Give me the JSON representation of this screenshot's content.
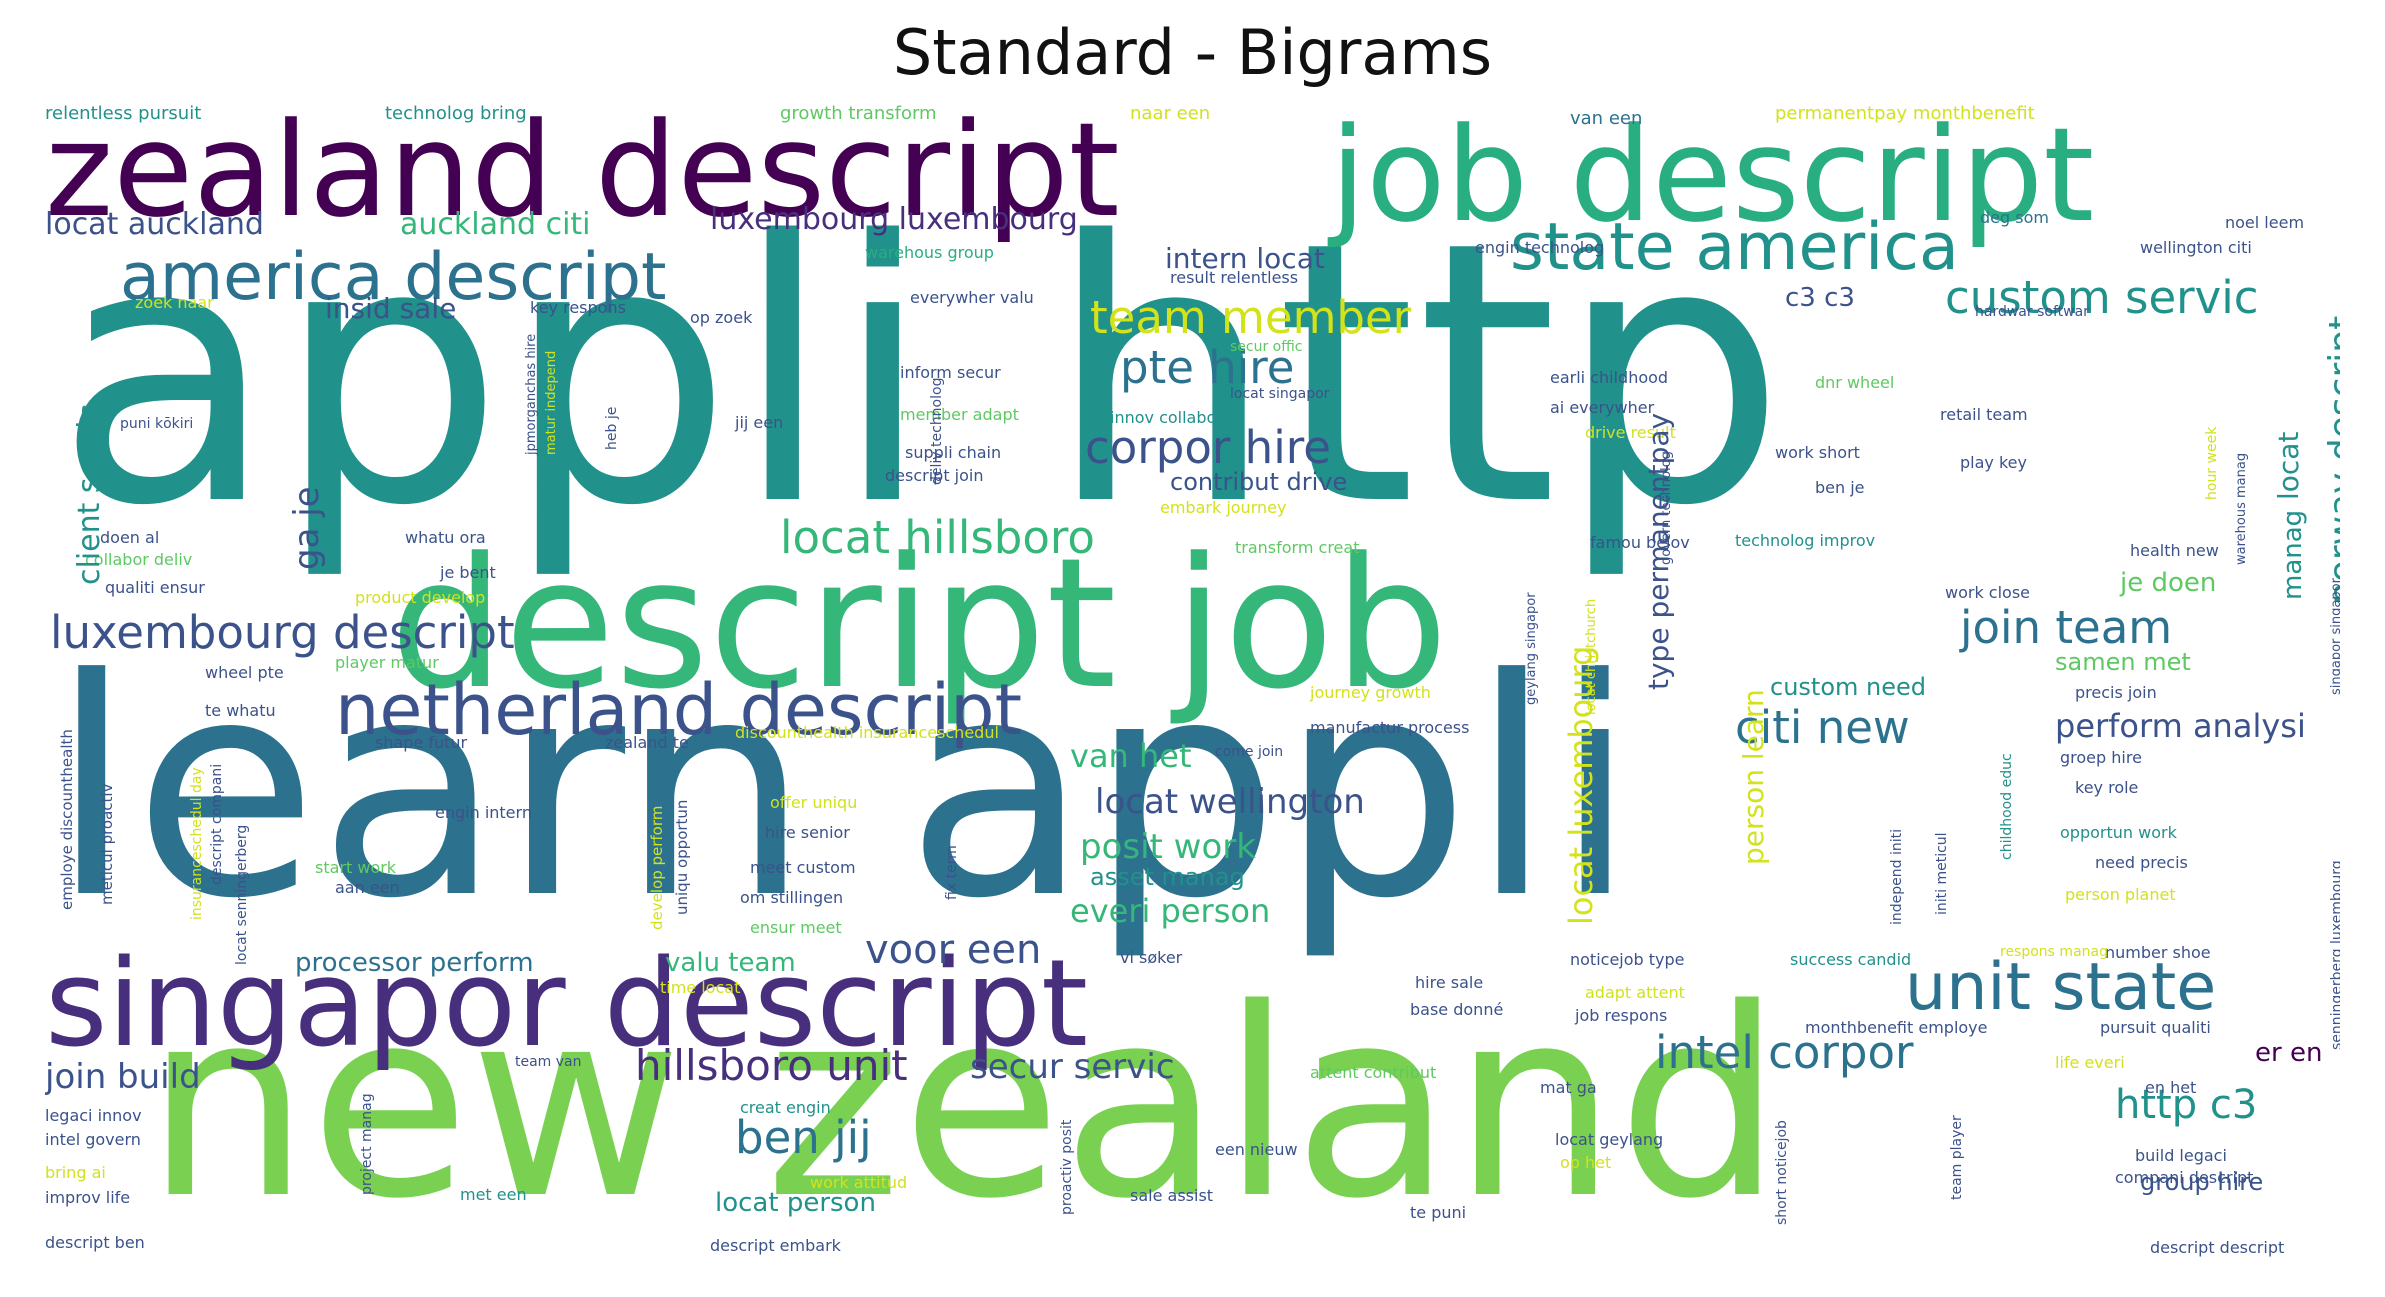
{
  "title": "Standard - Bigrams",
  "palette": [
    "#440154",
    "#472f7d",
    "#3b528b",
    "#2c728e",
    "#21918c",
    "#28ae80",
    "#5ec962",
    "#addc30",
    "#fde725"
  ],
  "words": [
    {
      "text": "appli http",
      "color": "#21918c"
    },
    {
      "text": "learn appli",
      "color": "#2c728e"
    },
    {
      "text": "new zealand",
      "color": "#7ad151"
    },
    {
      "text": "descript job",
      "color": "#35b779"
    },
    {
      "text": "zealand descript",
      "color": "#440154"
    },
    {
      "text": "job descript",
      "color": "#28ae80"
    },
    {
      "text": "singapor descript",
      "color": "#472f7d"
    },
    {
      "text": "netherland descript",
      "color": "#3b528b"
    },
    {
      "text": "america descript",
      "color": "#2c728e"
    },
    {
      "text": "state america",
      "color": "#21918c"
    },
    {
      "text": "unit state",
      "color": "#2c728e"
    },
    {
      "text": "luxembourg descript",
      "color": "#3b528b"
    },
    {
      "text": "corpor hire",
      "color": "#3b528b"
    },
    {
      "text": "pte hire",
      "color": "#2c728e"
    },
    {
      "text": "team member",
      "color": "#d2e21b"
    },
    {
      "text": "custom servic",
      "color": "#21918c"
    },
    {
      "text": "locat hillsboro",
      "color": "#35b779"
    },
    {
      "text": "join team",
      "color": "#2c728e"
    },
    {
      "text": "citi new",
      "color": "#2c728e"
    },
    {
      "text": "intel corpor",
      "color": "#2c728e"
    },
    {
      "text": "hillsboro unit",
      "color": "#472f7d"
    },
    {
      "text": "ben jij",
      "color": "#2c728e"
    },
    {
      "text": "voor een",
      "color": "#3b528b"
    },
    {
      "text": "http c3",
      "color": "#21918c"
    },
    {
      "text": "locat wellington",
      "color": "#3b528b"
    },
    {
      "text": "posit work",
      "color": "#35b779"
    },
    {
      "text": "everi person",
      "color": "#35b779"
    },
    {
      "text": "perform analysi",
      "color": "#3b528b"
    },
    {
      "text": "van het",
      "color": "#35b779"
    },
    {
      "text": "secur servic",
      "color": "#3b528b"
    },
    {
      "text": "join build",
      "color": "#3b528b"
    },
    {
      "text": "processor perform",
      "color": "#2c728e"
    },
    {
      "text": "valu team",
      "color": "#35b779"
    },
    {
      "text": "locat person",
      "color": "#21918c"
    },
    {
      "text": "locat auckland",
      "color": "#3b528b"
    },
    {
      "text": "auckland citi",
      "color": "#35b779"
    },
    {
      "text": "luxembourg luxembourg",
      "color": "#472f7d"
    },
    {
      "text": "intern locat",
      "color": "#3b528b"
    },
    {
      "text": "insid sale",
      "color": "#3b528b"
    },
    {
      "text": "contribut drive",
      "color": "#3b528b"
    },
    {
      "text": "custom need",
      "color": "#21918c"
    },
    {
      "text": "samen met",
      "color": "#5ec962"
    },
    {
      "text": "c3 c3",
      "color": "#3b528b"
    },
    {
      "text": "je doen",
      "color": "#5ec962"
    },
    {
      "text": "er en",
      "color": "#440154"
    },
    {
      "text": "asset manag",
      "color": "#21918c"
    },
    {
      "text": "group hire",
      "color": "#3b528b"
    },
    {
      "text": "relentless pursuit",
      "color": "#21918c"
    },
    {
      "text": "technolog bring",
      "color": "#21918c"
    },
    {
      "text": "growth transform",
      "color": "#5ec962"
    },
    {
      "text": "naar een",
      "color": "#d2e21b"
    },
    {
      "text": "van een",
      "color": "#2c728e"
    },
    {
      "text": "permanentpay monthbenefit",
      "color": "#d2e21b"
    },
    {
      "text": "noel leem",
      "color": "#3b528b"
    },
    {
      "text": "deg som",
      "color": "#2c728e"
    },
    {
      "text": "wellington citi",
      "color": "#3b528b"
    },
    {
      "text": "warehous group",
      "color": "#28ae80"
    },
    {
      "text": "result relentless",
      "color": "#3b528b"
    },
    {
      "text": "engin technolog",
      "color": "#3b528b"
    },
    {
      "text": "everywher valu",
      "color": "#3b528b"
    },
    {
      "text": "hardwar softwar",
      "color": "#3b528b"
    },
    {
      "text": "key respons",
      "color": "#3b528b"
    },
    {
      "text": "zoek naar",
      "color": "#d2e21b"
    },
    {
      "text": "op zoek",
      "color": "#3b528b"
    },
    {
      "text": "secur offic",
      "color": "#5ec962"
    },
    {
      "text": "inform secur",
      "color": "#3b528b"
    },
    {
      "text": "earli childhood",
      "color": "#3b528b"
    },
    {
      "text": "dnr wheel",
      "color": "#5ec962"
    },
    {
      "text": "retail team",
      "color": "#3b528b"
    },
    {
      "text": "locat singapor",
      "color": "#3b528b"
    },
    {
      "text": "ai everywher",
      "color": "#3b528b"
    },
    {
      "text": "innov collabor",
      "color": "#21918c"
    },
    {
      "text": "drive result",
      "color": "#d2e21b"
    },
    {
      "text": "puni kōkiri",
      "color": "#3b528b"
    },
    {
      "text": "jij een",
      "color": "#3b528b"
    },
    {
      "text": "member adapt",
      "color": "#5ec962"
    },
    {
      "text": "suppli chain",
      "color": "#3b528b"
    },
    {
      "text": "work short",
      "color": "#3b528b"
    },
    {
      "text": "play key",
      "color": "#3b528b"
    },
    {
      "text": "descript join",
      "color": "#3b528b"
    },
    {
      "text": "embark journey",
      "color": "#d2e21b"
    },
    {
      "text": "ben je",
      "color": "#3b528b"
    },
    {
      "text": "doen al",
      "color": "#3b528b"
    },
    {
      "text": "collabor deliv",
      "color": "#5ec962"
    },
    {
      "text": "whatu ora",
      "color": "#3b528b"
    },
    {
      "text": "transform creat",
      "color": "#5ec962"
    },
    {
      "text": "famou belov",
      "color": "#3b528b"
    },
    {
      "text": "technolog improv",
      "color": "#21918c"
    },
    {
      "text": "health new",
      "color": "#3b528b"
    },
    {
      "text": "qualiti ensur",
      "color": "#3b528b"
    },
    {
      "text": "je bent",
      "color": "#3b528b"
    },
    {
      "text": "work close",
      "color": "#3b528b"
    },
    {
      "text": "product develop",
      "color": "#d2e21b"
    },
    {
      "text": "player matur",
      "color": "#5ec962"
    },
    {
      "text": "wheel pte",
      "color": "#3b528b"
    },
    {
      "text": "precis join",
      "color": "#3b528b"
    },
    {
      "text": "te whatu",
      "color": "#3b528b"
    },
    {
      "text": "journey growth",
      "color": "#d2e21b"
    },
    {
      "text": "manufactur process",
      "color": "#3b528b"
    },
    {
      "text": "shape futur",
      "color": "#3b528b"
    },
    {
      "text": "zealand te",
      "color": "#3b528b"
    },
    {
      "text": "discounthealth insuranceschedul",
      "color": "#d2e21b"
    },
    {
      "text": "come join",
      "color": "#3b528b"
    },
    {
      "text": "groep hire",
      "color": "#3b528b"
    },
    {
      "text": "key role",
      "color": "#3b528b"
    },
    {
      "text": "engin intern",
      "color": "#3b528b"
    },
    {
      "text": "offer uniqu",
      "color": "#d2e21b"
    },
    {
      "text": "hire senior",
      "color": "#3b528b"
    },
    {
      "text": "opportun work",
      "color": "#21918c"
    },
    {
      "text": "start work",
      "color": "#5ec962"
    },
    {
      "text": "meet custom",
      "color": "#3b528b"
    },
    {
      "text": "need precis",
      "color": "#3b528b"
    },
    {
      "text": "aan een",
      "color": "#3b528b"
    },
    {
      "text": "om stillingen",
      "color": "#3b528b"
    },
    {
      "text": "person planet",
      "color": "#d2e21b"
    },
    {
      "text": "ensur meet",
      "color": "#5ec962"
    },
    {
      "text": "vi søker",
      "color": "#3b528b"
    },
    {
      "text": "noticejob type",
      "color": "#3b528b"
    },
    {
      "text": "success candid",
      "color": "#21918c"
    },
    {
      "text": "number shoe",
      "color": "#3b528b"
    },
    {
      "text": "hire sale",
      "color": "#3b528b"
    },
    {
      "text": "base donné",
      "color": "#3b528b"
    },
    {
      "text": "adapt attent",
      "color": "#d2e21b"
    },
    {
      "text": "job respons",
      "color": "#3b528b"
    },
    {
      "text": "time locat",
      "color": "#d2e21b"
    },
    {
      "text": "monthbenefit employe",
      "color": "#3b528b"
    },
    {
      "text": "pursuit qualiti",
      "color": "#3b528b"
    },
    {
      "text": "team van",
      "color": "#3b528b"
    },
    {
      "text": "attent contribut",
      "color": "#5ec962"
    },
    {
      "text": "mat ga",
      "color": "#3b528b"
    },
    {
      "text": "life everi",
      "color": "#d2e21b"
    },
    {
      "text": "en het",
      "color": "#3b528b"
    },
    {
      "text": "legaci innov",
      "color": "#3b528b"
    },
    {
      "text": "creat engin",
      "color": "#21918c"
    },
    {
      "text": "intel govern",
      "color": "#3b528b"
    },
    {
      "text": "een nieuw",
      "color": "#3b528b"
    },
    {
      "text": "locat geylang",
      "color": "#3b528b"
    },
    {
      "text": "op het",
      "color": "#d2e21b"
    },
    {
      "text": "build legaci",
      "color": "#3b528b"
    },
    {
      "text": "compani descript",
      "color": "#3b528b"
    },
    {
      "text": "bring ai",
      "color": "#d2e21b"
    },
    {
      "text": "work attitud",
      "color": "#d2e21b"
    },
    {
      "text": "improv life",
      "color": "#3b528b"
    },
    {
      "text": "met een",
      "color": "#21918c"
    },
    {
      "text": "sale assist",
      "color": "#3b528b"
    },
    {
      "text": "te puni",
      "color": "#3b528b"
    },
    {
      "text": "descript ben",
      "color": "#3b528b"
    },
    {
      "text": "descript embark",
      "color": "#3b528b"
    },
    {
      "text": "descript descript",
      "color": "#3b528b"
    },
    {
      "text": "client servic",
      "color": "#21918c"
    },
    {
      "text": "ga je",
      "color": "#3b528b"
    },
    {
      "text": "locat luxembourg",
      "color": "#d2e21b"
    },
    {
      "text": "type permanentpay",
      "color": "#3b528b"
    },
    {
      "text": "person learn",
      "color": "#d2e21b"
    },
    {
      "text": "norway descript",
      "color": "#21918c"
    },
    {
      "text": "locat",
      "color": "#21918c"
    },
    {
      "text": "manag",
      "color": "#21918c"
    },
    {
      "text": "deliv technolog",
      "color": "#3b528b"
    },
    {
      "text": "jpmorganchas hire",
      "color": "#3b528b"
    },
    {
      "text": "matur independ",
      "color": "#d2e21b"
    },
    {
      "text": "heb je",
      "color": "#3b528b"
    },
    {
      "text": "locat christchurch",
      "color": "#d2e21b"
    },
    {
      "text": "geylang singapor",
      "color": "#3b528b"
    },
    {
      "text": "govern technolog",
      "color": "#3b528b"
    },
    {
      "text": "hour week",
      "color": "#d2e21b"
    },
    {
      "text": "warehous manag",
      "color": "#3b528b"
    },
    {
      "text": "singapor singapor",
      "color": "#3b528b"
    },
    {
      "text": "employe discounthealth",
      "color": "#3b528b"
    },
    {
      "text": "meticul proactiv",
      "color": "#3b528b"
    },
    {
      "text": "descript compani",
      "color": "#3b528b"
    },
    {
      "text": "insuranceschedul day",
      "color": "#d2e21b"
    },
    {
      "text": "locat senningerberg",
      "color": "#3b528b"
    },
    {
      "text": "develop perform",
      "color": "#d2e21b"
    },
    {
      "text": "uniqu opportun",
      "color": "#3b528b"
    },
    {
      "text": "fix term",
      "color": "#3b528b"
    },
    {
      "text": "independ initi",
      "color": "#3b528b"
    },
    {
      "text": "initi meticul",
      "color": "#3b528b"
    },
    {
      "text": "childhood educ",
      "color": "#21918c"
    },
    {
      "text": "senningerberg luxembourg",
      "color": "#3b528b"
    },
    {
      "text": "project manag",
      "color": "#3b528b"
    },
    {
      "text": "proactiv posit",
      "color": "#3b528b"
    },
    {
      "text": "team player",
      "color": "#3b528b"
    },
    {
      "text": "short noticejob",
      "color": "#3b528b"
    },
    {
      "text": "respons manag",
      "color": "#d2e21b"
    }
  ]
}
